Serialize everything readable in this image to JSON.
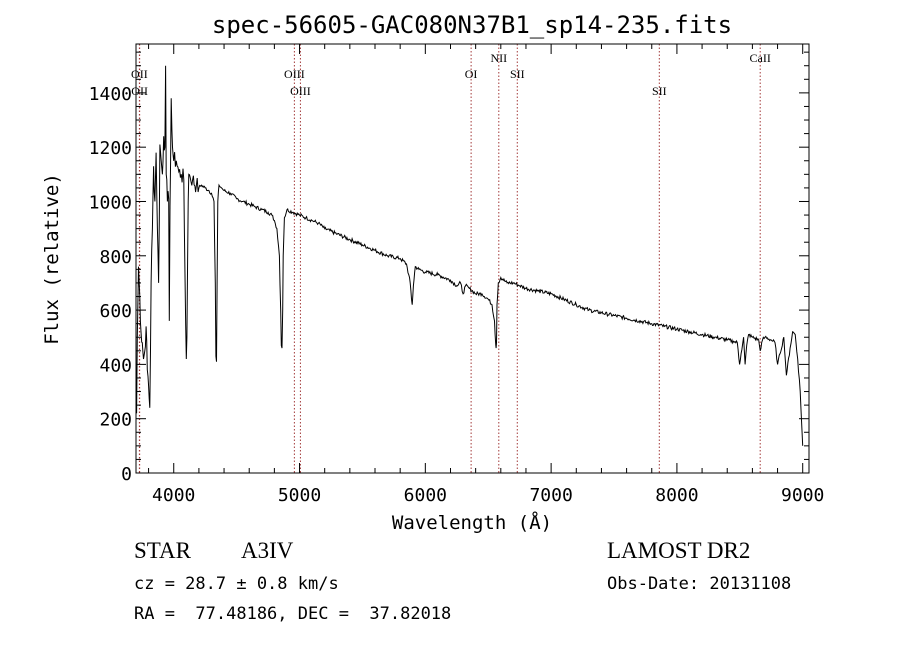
{
  "chart_data": {
    "type": "line",
    "title": "spec-56605-GAC080N37B1_sp14-235.fits",
    "xlabel": "Wavelength (Å)",
    "ylabel": "Flux (relative)",
    "xlim": [
      3700,
      9050
    ],
    "ylim": [
      0,
      1580
    ],
    "xticks": [
      4000,
      5000,
      6000,
      7000,
      8000,
      9000
    ],
    "yticks": [
      0,
      200,
      400,
      600,
      800,
      1000,
      1200,
      1400
    ],
    "grid": false,
    "line_color": "#000000",
    "marker_color": "#a33a3a",
    "series": [
      {
        "x": [
          3700,
          3705,
          3710,
          3720,
          3730,
          3740,
          3750,
          3760,
          3770,
          3780,
          3790,
          3800,
          3810,
          3820,
          3830,
          3840,
          3850,
          3860,
          3870,
          3880,
          3890,
          3900,
          3910,
          3920,
          3930,
          3935,
          3940,
          3950,
          3960,
          3965,
          3970,
          3975,
          3980,
          3990,
          4000,
          4020,
          4040,
          4060,
          4080,
          4090,
          4100,
          4105,
          4110,
          4115,
          4120,
          4130,
          4150,
          4180,
          4200,
          4220,
          4250,
          4280,
          4300,
          4320,
          4330,
          4335,
          4340,
          4345,
          4350,
          4360,
          4380,
          4400,
          4450,
          4500,
          4550,
          4600,
          4650,
          4700,
          4750,
          4780,
          4800,
          4820,
          4840,
          4850,
          4855,
          4861,
          4866,
          4870,
          4880,
          4900,
          4950,
          5000,
          5050,
          5100,
          5150,
          5200,
          5300,
          5400,
          5500,
          5600,
          5700,
          5800,
          5850,
          5880,
          5890,
          5896,
          5905,
          5920,
          5950,
          6000,
          6100,
          6200,
          6250,
          6280,
          6300,
          6320,
          6350,
          6400,
          6450,
          6500,
          6530,
          6550,
          6560,
          6563,
          6566,
          6570,
          6580,
          6600,
          6650,
          6700,
          6750,
          6800,
          6900,
          7000,
          7100,
          7200,
          7300,
          7400,
          7500,
          7600,
          7700,
          7800,
          7900,
          8000,
          8100,
          8200,
          8300,
          8400,
          8450,
          8480,
          8498,
          8510,
          8530,
          8542,
          8555,
          8570,
          8600,
          8650,
          8662,
          8680,
          8700,
          8750,
          8780,
          8800,
          8820,
          8850,
          8870,
          8900,
          8920,
          8940,
          8960,
          8980,
          9000
        ],
        "y": [
          300,
          220,
          500,
          760,
          650,
          520,
          480,
          420,
          450,
          540,
          380,
          320,
          240,
          700,
          900,
          1130,
          1000,
          1180,
          900,
          700,
          1210,
          1150,
          1100,
          1240,
          1200,
          1500,
          1100,
          1000,
          1010,
          560,
          980,
          1150,
          1380,
          1200,
          1150,
          1150,
          1110,
          1100,
          1080,
          700,
          420,
          500,
          780,
          1000,
          1100,
          1090,
          1080,
          1060,
          1050,
          1060,
          1050,
          1040,
          1030,
          1000,
          700,
          430,
          410,
          700,
          1000,
          1060,
          1050,
          1040,
          1030,
          1010,
          1000,
          990,
          980,
          970,
          960,
          950,
          930,
          900,
          800,
          600,
          470,
          460,
          600,
          800,
          940,
          970,
          960,
          950,
          940,
          930,
          920,
          900,
          880,
          860,
          840,
          820,
          800,
          790,
          770,
          700,
          640,
          620,
          690,
          760,
          750,
          740,
          730,
          710,
          690,
          700,
          660,
          690,
          680,
          660,
          660,
          640,
          620,
          560,
          470,
          460,
          480,
          620,
          700,
          720,
          700,
          700,
          690,
          680,
          670,
          660,
          640,
          620,
          600,
          590,
          580,
          570,
          560,
          550,
          540,
          530,
          520,
          510,
          500,
          490,
          485,
          480,
          400,
          440,
          500,
          400,
          470,
          510,
          500,
          490,
          450,
          490,
          500,
          490,
          480,
          400,
          440,
          500,
          360,
          460,
          520,
          510,
          420,
          300,
          100
        ]
      }
    ],
    "line_markers": [
      {
        "label": "OII",
        "wavelength": 3727,
        "row": "upper"
      },
      {
        "label": "OII",
        "wavelength": 3729,
        "row": "lower"
      },
      {
        "label": "OIII",
        "wavelength": 4959,
        "row": "upper"
      },
      {
        "label": "OIII",
        "wavelength": 5007,
        "row": "lower"
      },
      {
        "label": "OI",
        "wavelength": 6364,
        "row": "upper"
      },
      {
        "label": "NII",
        "wavelength": 6584,
        "row": "top"
      },
      {
        "label": "SII",
        "wavelength": 6731,
        "row": "upper"
      },
      {
        "label": "SII",
        "wavelength": 7860,
        "row": "lower"
      },
      {
        "label": "CaII",
        "wavelength": 8662,
        "row": "top"
      }
    ]
  },
  "info": {
    "class": "STAR",
    "subclass": "A3IV",
    "survey": "LAMOST DR2",
    "redshift": "cz = 28.7 ± 0.8 km/s",
    "obs_date": "Obs-Date: 20131108",
    "coords": "RA =  77.48186, DEC =  37.82018"
  }
}
